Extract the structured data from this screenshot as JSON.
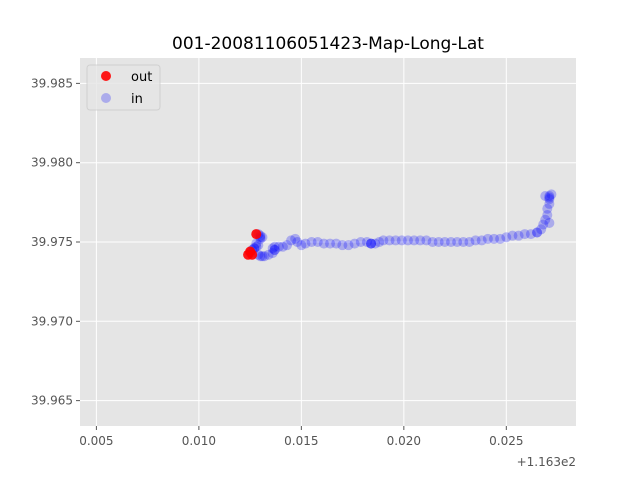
{
  "chart_data": {
    "type": "scatter",
    "title": "001-20081106051423-Map-Long-Lat",
    "xlabel": "",
    "ylabel": "",
    "x_offset_label": "+1.163e2",
    "xlim": [
      0.0042,
      0.0284
    ],
    "ylim": [
      39.9634,
      39.9866
    ],
    "x_ticks": [
      0.005,
      0.01,
      0.015,
      0.02,
      0.025
    ],
    "x_tick_labels": [
      "0.005",
      "0.010",
      "0.015",
      "0.020",
      "0.025"
    ],
    "y_ticks": [
      39.965,
      39.97,
      39.975,
      39.98,
      39.985
    ],
    "y_tick_labels": [
      "39.965",
      "39.970",
      "39.975",
      "39.980",
      "39.985"
    ],
    "grid": true,
    "legend_position": "upper-left",
    "series": [
      {
        "name": "out",
        "color": "#ff0000",
        "opacity": 0.9,
        "points": [
          [
            0.0124,
            39.9742
          ],
          [
            0.0126,
            39.9742
          ],
          [
            0.0128,
            39.9755
          ],
          [
            0.0125,
            39.9744
          ]
        ]
      },
      {
        "name": "in",
        "color": "#0000ff",
        "opacity": 0.25,
        "points": [
          [
            0.0125,
            39.9743
          ],
          [
            0.0126,
            39.9745
          ],
          [
            0.0127,
            39.9746
          ],
          [
            0.0128,
            39.9747
          ],
          [
            0.0129,
            39.9748
          ],
          [
            0.013,
            39.9752
          ],
          [
            0.013,
            39.9754
          ],
          [
            0.0129,
            39.9755
          ],
          [
            0.0128,
            39.9749
          ],
          [
            0.0127,
            39.9746
          ],
          [
            0.0129,
            39.9742
          ],
          [
            0.013,
            39.9741
          ],
          [
            0.0131,
            39.9741
          ],
          [
            0.0132,
            39.9741
          ],
          [
            0.0134,
            39.9742
          ],
          [
            0.0136,
            39.9743
          ],
          [
            0.0137,
            39.9745
          ],
          [
            0.0137,
            39.9747
          ],
          [
            0.0139,
            39.9747
          ],
          [
            0.0141,
            39.9747
          ],
          [
            0.0143,
            39.9748
          ],
          [
            0.0145,
            39.9751
          ],
          [
            0.0147,
            39.9752
          ],
          [
            0.0148,
            39.975
          ],
          [
            0.015,
            39.9748
          ],
          [
            0.0152,
            39.9749
          ],
          [
            0.0155,
            39.975
          ],
          [
            0.0158,
            39.975
          ],
          [
            0.0161,
            39.9749
          ],
          [
            0.0164,
            39.9749
          ],
          [
            0.0167,
            39.9749
          ],
          [
            0.017,
            39.9748
          ],
          [
            0.0173,
            39.9748
          ],
          [
            0.0176,
            39.9749
          ],
          [
            0.0179,
            39.975
          ],
          [
            0.0182,
            39.975
          ],
          [
            0.0184,
            39.9749
          ],
          [
            0.0186,
            39.9749
          ],
          [
            0.0188,
            39.975
          ],
          [
            0.019,
            39.9751
          ],
          [
            0.0193,
            39.9751
          ],
          [
            0.0196,
            39.9751
          ],
          [
            0.0199,
            39.9751
          ],
          [
            0.0202,
            39.9751
          ],
          [
            0.0205,
            39.9751
          ],
          [
            0.0208,
            39.9751
          ],
          [
            0.0211,
            39.9751
          ],
          [
            0.0214,
            39.975
          ],
          [
            0.0217,
            39.975
          ],
          [
            0.022,
            39.975
          ],
          [
            0.0223,
            39.975
          ],
          [
            0.0226,
            39.975
          ],
          [
            0.0229,
            39.975
          ],
          [
            0.0232,
            39.975
          ],
          [
            0.0235,
            39.9751
          ],
          [
            0.0238,
            39.9751
          ],
          [
            0.0241,
            39.9752
          ],
          [
            0.0244,
            39.9752
          ],
          [
            0.0247,
            39.9752
          ],
          [
            0.025,
            39.9753
          ],
          [
            0.0253,
            39.9754
          ],
          [
            0.0256,
            39.9754
          ],
          [
            0.0259,
            39.9755
          ],
          [
            0.0262,
            39.9755
          ],
          [
            0.0265,
            39.9756
          ],
          [
            0.0267,
            39.9758
          ],
          [
            0.0268,
            39.9761
          ],
          [
            0.0269,
            39.9764
          ],
          [
            0.027,
            39.9767
          ],
          [
            0.027,
            39.9771
          ],
          [
            0.0271,
            39.9774
          ],
          [
            0.0271,
            39.9777
          ],
          [
            0.0271,
            39.9779
          ],
          [
            0.0272,
            39.978
          ],
          [
            0.0269,
            39.9779
          ],
          [
            0.0271,
            39.9762
          ],
          [
            0.0184,
            39.9749
          ],
          [
            0.0184,
            39.9749
          ],
          [
            0.013,
            39.9753
          ],
          [
            0.0131,
            39.9753
          ],
          [
            0.0136,
            39.9746
          ],
          [
            0.0137,
            39.9745
          ],
          [
            0.0265,
            39.9756
          ],
          [
            0.0271,
            39.9778
          ]
        ]
      }
    ]
  }
}
